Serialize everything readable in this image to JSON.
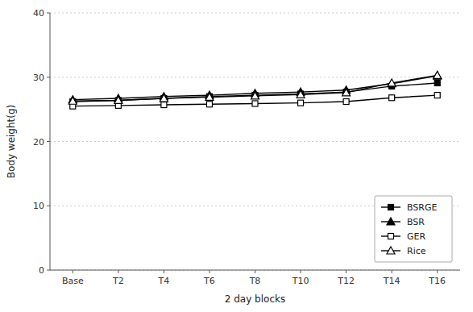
{
  "chart_data": {
    "type": "line",
    "categories": [
      "Base",
      "T2",
      "T4",
      "T6",
      "T8",
      "T10",
      "T12",
      "T14",
      "T16"
    ],
    "series": [
      {
        "name": "BSRGE",
        "color": "#000000",
        "marker": "square",
        "line_style": "solid",
        "values": [
          26.2,
          26.4,
          26.7,
          27.0,
          27.2,
          27.4,
          27.7,
          28.6,
          29.1
        ]
      },
      {
        "name": "BSR",
        "color": "#000000",
        "marker": "triangle",
        "line_style": "solid",
        "values": [
          26.5,
          26.7,
          27.0,
          27.2,
          27.5,
          27.7,
          28.0,
          29.0,
          30.2
        ]
      },
      {
        "name": "GER",
        "color": "#000000",
        "marker": "square-open",
        "line_style": "solid",
        "values": [
          25.5,
          25.6,
          25.7,
          25.8,
          25.9,
          26.0,
          26.2,
          26.8,
          27.2
        ]
      },
      {
        "name": "Rice",
        "color": "#000000",
        "marker": "triangle-open",
        "line_style": "solid",
        "values": [
          26.3,
          26.4,
          26.7,
          26.9,
          27.1,
          27.3,
          27.6,
          29.1,
          30.3
        ]
      }
    ],
    "xlabel": "2 day blocks",
    "ylabel": "Body weight(g)",
    "ylim": [
      0,
      40
    ],
    "yticks": [
      0,
      10,
      20,
      30,
      40
    ],
    "grid": "y",
    "legend": "lower right"
  }
}
